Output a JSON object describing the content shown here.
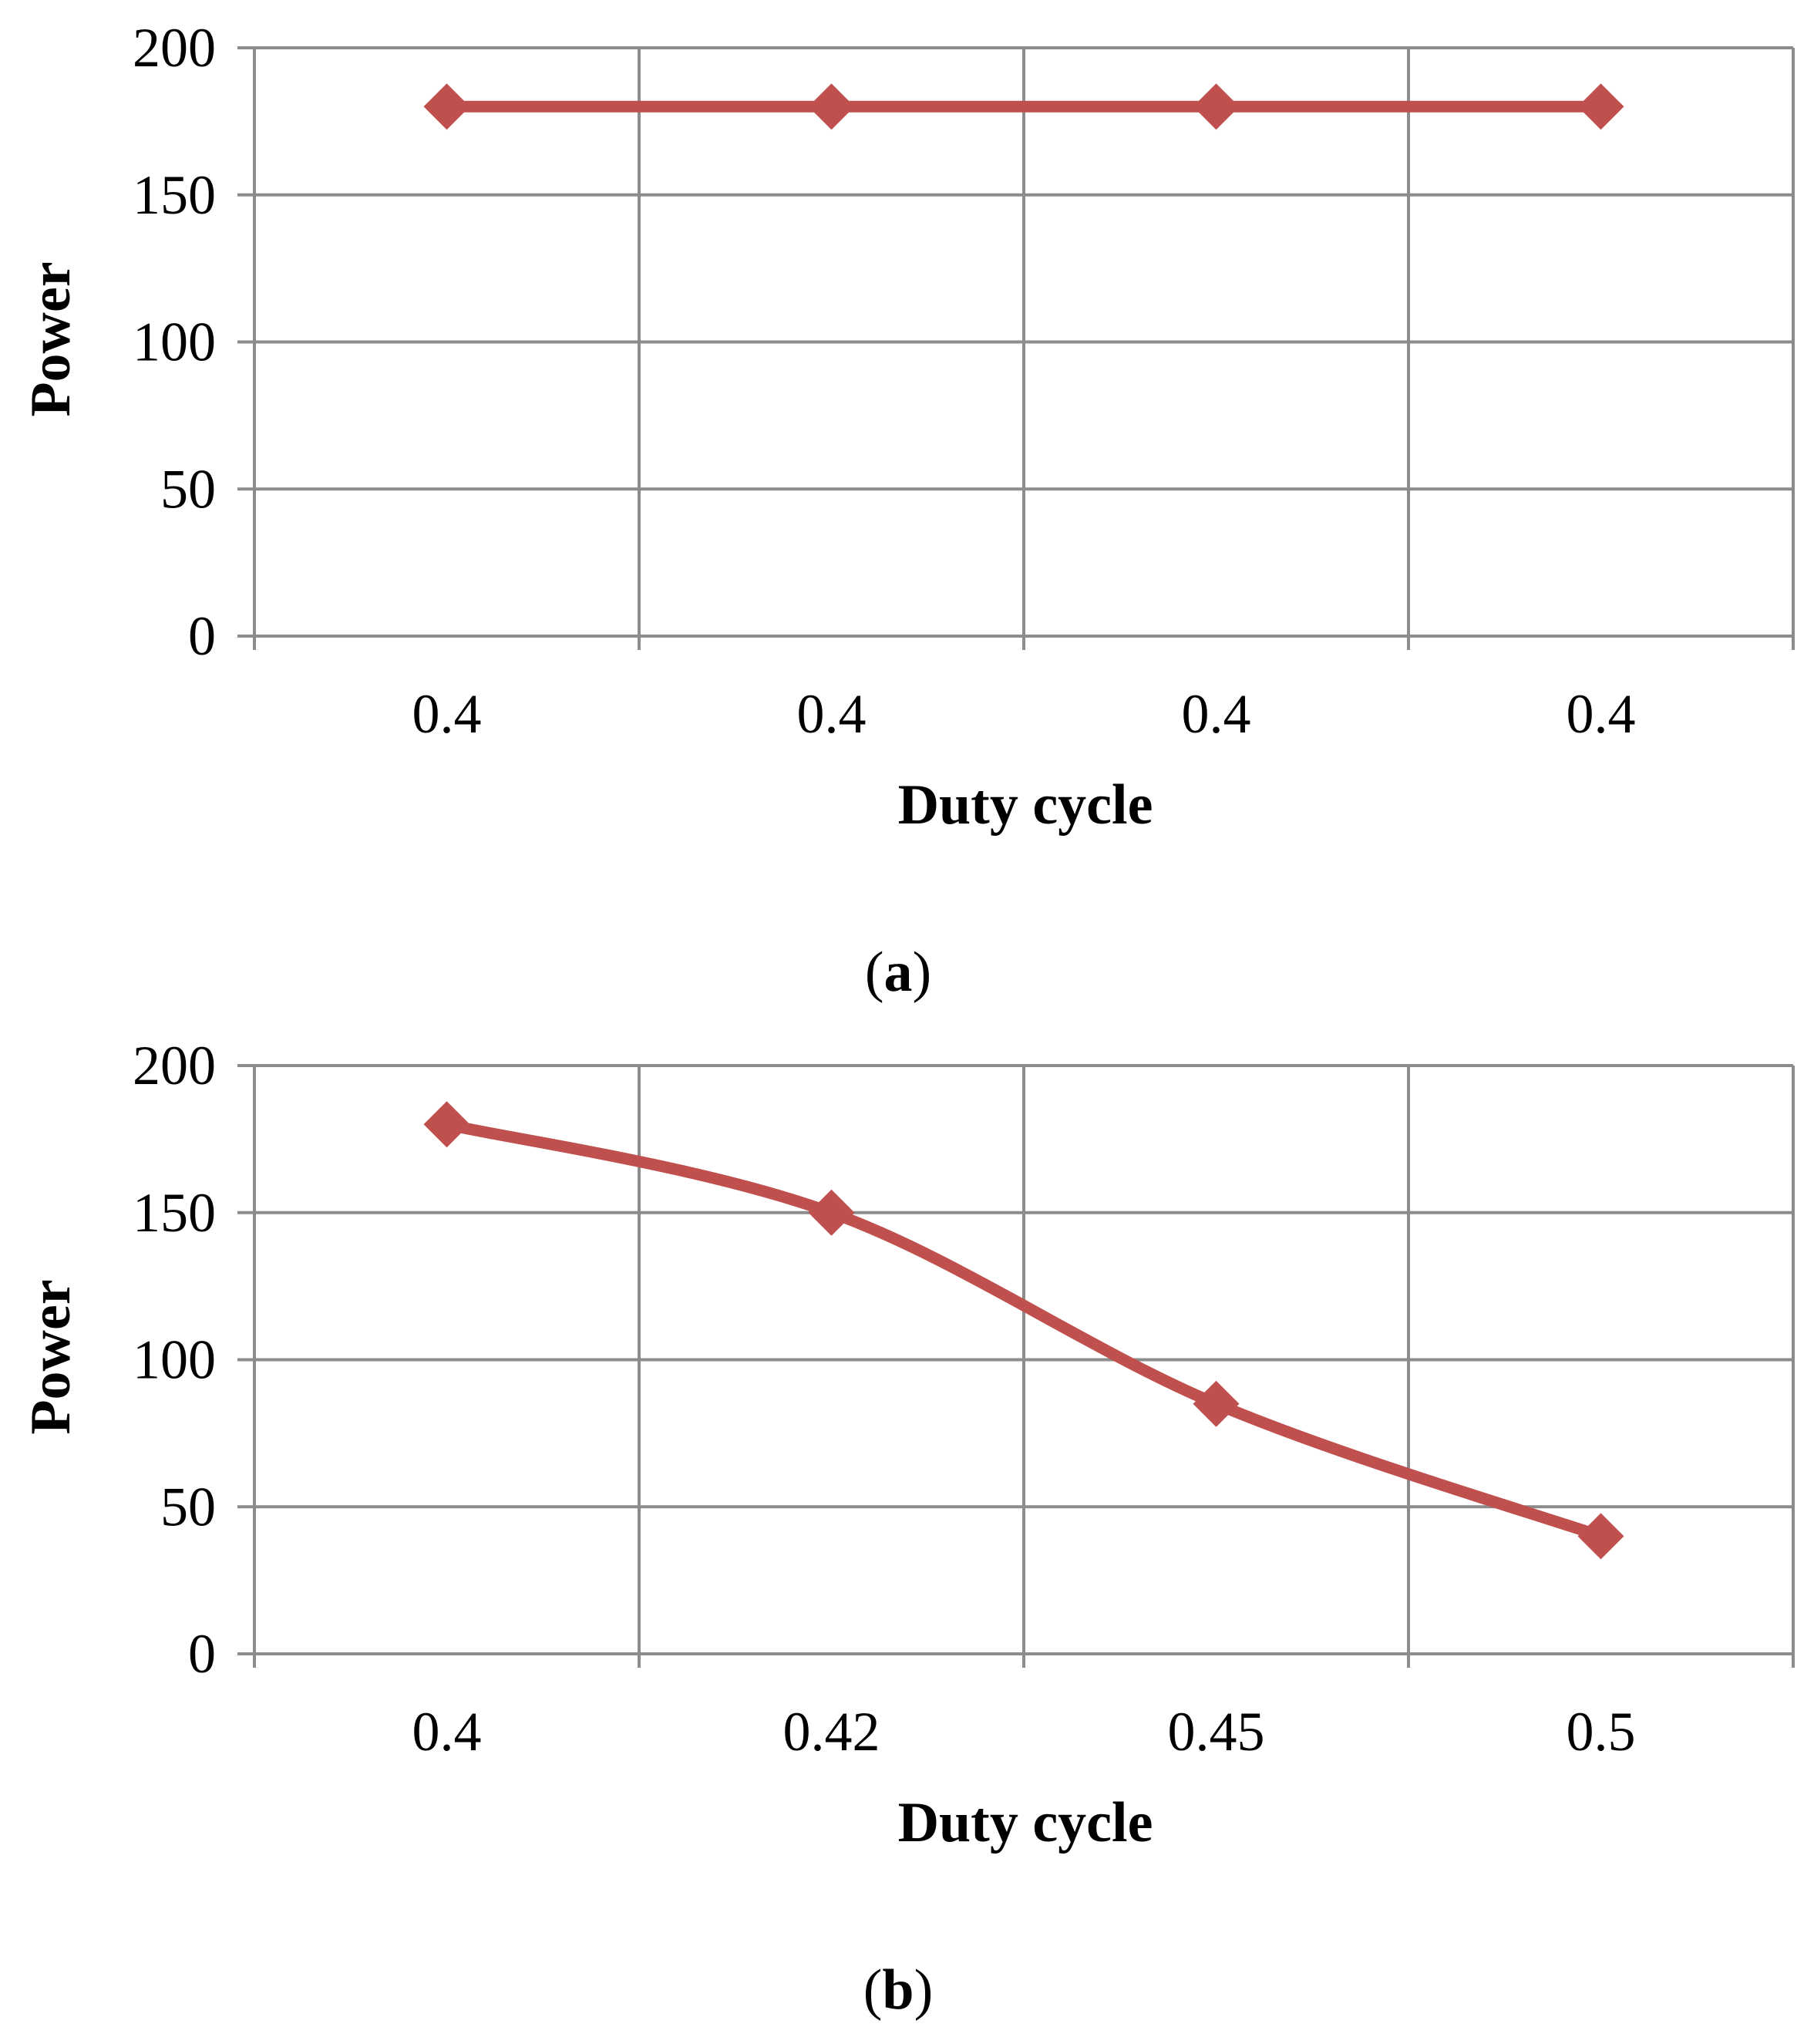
{
  "chart_data": [
    {
      "type": "line",
      "panel_label": "(a)",
      "categories": [
        "0.4",
        "0.4",
        "0.4",
        "0.4"
      ],
      "series": [
        {
          "values": [
            180,
            180,
            180,
            180
          ],
          "color": "#C0504D",
          "marker": "diamond"
        }
      ],
      "xlabel": "Duty cycle",
      "ylabel": "Power",
      "ylim": [
        0,
        200
      ],
      "yticks": [
        "0",
        "50",
        "100",
        "150",
        "200"
      ],
      "grid": true,
      "legend": "none"
    },
    {
      "type": "line",
      "panel_label": "(b)",
      "categories": [
        "0.4",
        "0.42",
        "0.45",
        "0.5"
      ],
      "series": [
        {
          "values": [
            180,
            150,
            85,
            40
          ],
          "color": "#C0504D",
          "marker": "diamond",
          "smooth": true
        }
      ],
      "xlabel": "Duty cycle",
      "ylabel": "Power",
      "ylim": [
        0,
        200
      ],
      "yticks": [
        "0",
        "50",
        "100",
        "150",
        "200"
      ],
      "grid": true,
      "legend": "none"
    }
  ],
  "colors": {
    "grid": "#8C8C8C",
    "series": "#C0504D"
  }
}
